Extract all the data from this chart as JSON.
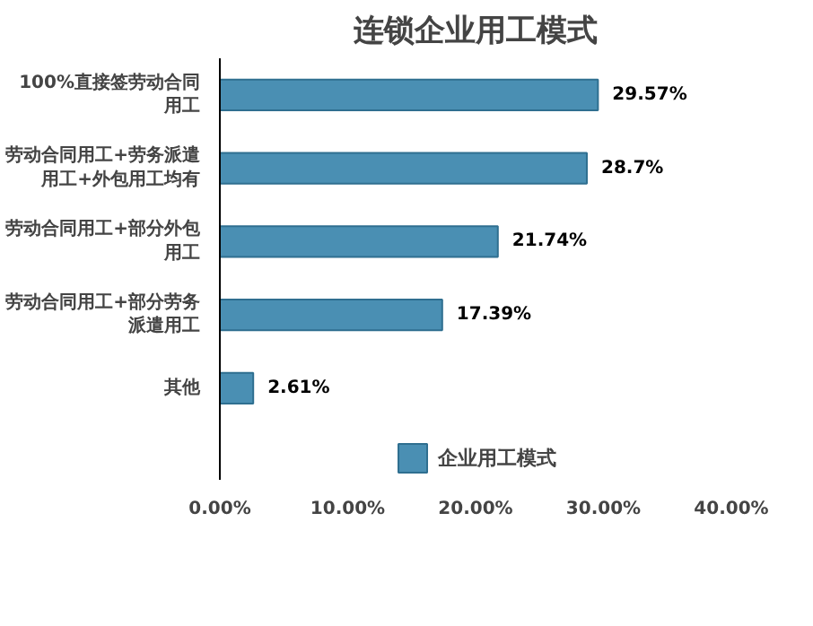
{
  "chart_data": {
    "type": "bar",
    "orientation": "horizontal",
    "title": "连锁企业用工模式",
    "categories": [
      "100%直接签劳动合同用工",
      "劳动合同用工+劳务派遣用工+外包用工均有",
      "劳动合同用工+部分外包用工",
      "劳动合同用工+部分劳务派遣用工",
      "其他"
    ],
    "series": [
      {
        "name": "企业用工模式",
        "color": "#4a8fb3",
        "values": [
          29.57,
          28.7,
          21.74,
          17.39,
          2.61
        ],
        "value_labels": [
          "29.57%",
          "28.7%",
          "21.74%",
          "17.39%",
          "2.61%"
        ]
      }
    ],
    "xlim": [
      0,
      40
    ],
    "xticks": [
      {
        "value": 0,
        "label": "0.00%"
      },
      {
        "value": 10,
        "label": "10.00%"
      },
      {
        "value": 20,
        "label": "20.00%"
      },
      {
        "value": 30,
        "label": "30.00%"
      },
      {
        "value": 40,
        "label": "40.00%"
      }
    ],
    "legend": "bottom",
    "grid": false
  }
}
